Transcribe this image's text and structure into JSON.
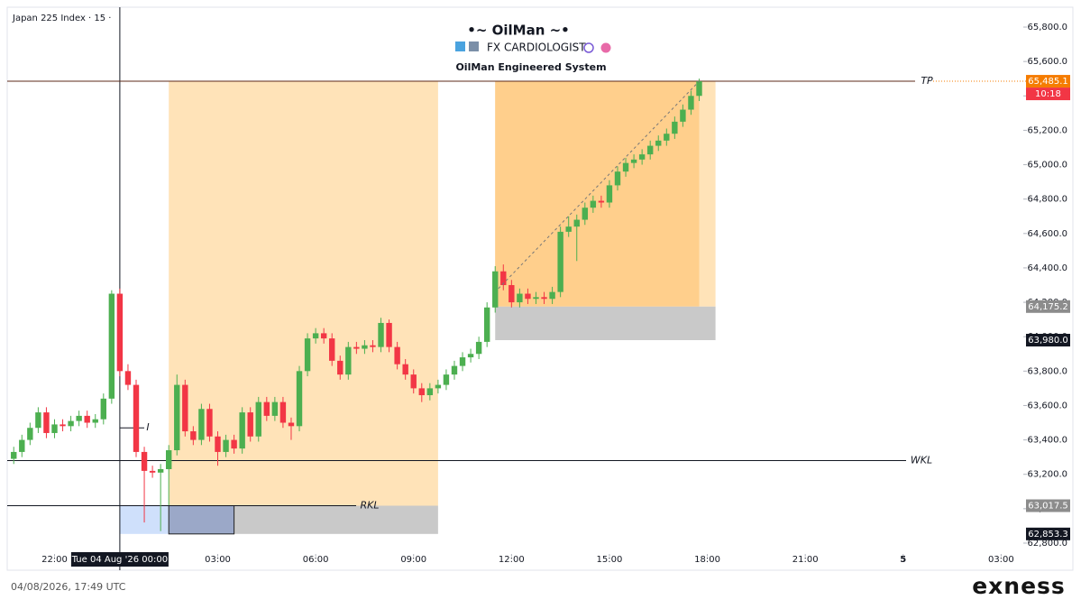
{
  "chart_data": {
    "type": "candlestick",
    "symbol": "Japan 225 Index · 15 ·",
    "title": "•~ OilMan ~•",
    "subtitle": "FX CARDIOLOGIST",
    "caption": "OilMan Engineered System",
    "timestamp": "04/08/2026, 17:49 UTC",
    "brand": "exness",
    "xlim": [
      -3.45,
      27.68
    ],
    "ylim": [
      62653,
      65905
    ],
    "xticks": [
      {
        "value": -2,
        "label": "22:00"
      },
      {
        "value": 3,
        "label": "03:00"
      },
      {
        "value": 6,
        "label": "06:00"
      },
      {
        "value": 9,
        "label": "09:00"
      },
      {
        "value": 12,
        "label": "12:00"
      },
      {
        "value": 15,
        "label": "15:00"
      },
      {
        "value": 18,
        "label": "18:00"
      },
      {
        "value": 21,
        "label": "21:00"
      },
      {
        "value": 24,
        "label": "5"
      },
      {
        "value": 27,
        "label": "03:00"
      }
    ],
    "yticks": [
      {
        "value": 62800,
        "label": "62,800.0"
      },
      {
        "value": 63000,
        "label": "63,000.0"
      },
      {
        "value": 63200,
        "label": "63,200.0"
      },
      {
        "value": 63400,
        "label": "63,400.0"
      },
      {
        "value": 63600,
        "label": "63,600.0"
      },
      {
        "value": 63800,
        "label": "63,800.0"
      },
      {
        "value": 64000,
        "label": "64,000.0"
      },
      {
        "value": 64200,
        "label": "64,200.0"
      },
      {
        "value": 64400,
        "label": "64,400.0"
      },
      {
        "value": 64600,
        "label": "64,600.0"
      },
      {
        "value": 64800,
        "label": "64,800.0"
      },
      {
        "value": 65000,
        "label": "65,000.0"
      },
      {
        "value": 65200,
        "label": "65,200.0"
      },
      {
        "value": 65400,
        "label": "65,400.0"
      },
      {
        "value": 65600,
        "label": "65,600.0"
      },
      {
        "value": 65800,
        "label": "65,800.0"
      }
    ],
    "crosshair": {
      "x": 0,
      "label": "Tue 04 Aug '26   00:00"
    },
    "up_color": "#4caf50",
    "down_color": "#f23645",
    "x": [
      -3.25,
      -3,
      -2.75,
      -2.5,
      -2.25,
      -2,
      -1.75,
      -1.5,
      -1.25,
      -1,
      -0.75,
      -0.5,
      -0.25,
      0,
      0.25,
      0.5,
      0.75,
      1,
      1.25,
      1.5,
      1.75,
      2,
      2.25,
      2.5,
      2.75,
      3,
      3.25,
      3.5,
      3.75,
      4,
      4.25,
      4.5,
      4.75,
      5,
      5.25,
      5.5,
      5.75,
      6,
      6.25,
      6.5,
      6.75,
      7,
      7.25,
      7.5,
      7.75,
      8,
      8.25,
      8.5,
      8.75,
      9,
      9.25,
      9.5,
      9.75,
      10,
      10.25,
      10.5,
      10.75,
      11,
      11.25,
      11.5,
      11.75,
      12,
      12.25,
      12.5,
      12.75,
      13,
      13.25,
      13.5,
      13.75,
      14,
      14.25,
      14.5,
      14.75,
      15,
      15.25,
      15.5,
      15.75,
      16,
      16.25,
      16.5,
      16.75,
      17,
      17.25,
      17.5,
      17.75
    ],
    "open": [
      63290,
      63330,
      63400,
      63470,
      63560,
      63440,
      63490,
      63480,
      63510,
      63540,
      63500,
      63520,
      63640,
      64250,
      63800,
      63720,
      63330,
      63220,
      63210,
      63230,
      63340,
      63720,
      63450,
      63400,
      63580,
      63420,
      63330,
      63400,
      63350,
      63560,
      63420,
      63620,
      63540,
      63620,
      63500,
      63480,
      63800,
      63990,
      64020,
      63990,
      63860,
      63780,
      63940,
      63930,
      63950,
      63940,
      64080,
      63940,
      63840,
      63780,
      63700,
      63660,
      63700,
      63720,
      63780,
      63830,
      63880,
      63900,
      63970,
      64170,
      64380,
      64300,
      64200,
      64250,
      64220,
      64230,
      64220,
      64260,
      64610,
      64640,
      64680,
      64750,
      64790,
      64780,
      64880,
      64960,
      65010,
      65030,
      65060,
      65110,
      65140,
      65180,
      65250,
      65320,
      65400
    ],
    "high": [
      63360,
      63430,
      63500,
      63590,
      63590,
      63520,
      63520,
      63540,
      63570,
      63570,
      63550,
      63670,
      64270,
      64280,
      63840,
      63750,
      63360,
      63250,
      63260,
      63370,
      63780,
      63750,
      63480,
      63610,
      63610,
      63450,
      63430,
      63430,
      63590,
      63590,
      63650,
      63650,
      63650,
      63650,
      63530,
      63830,
      64020,
      64050,
      64050,
      64020,
      63890,
      63970,
      63970,
      63980,
      63980,
      64110,
      64100,
      63970,
      63870,
      63810,
      63730,
      63730,
      63750,
      63810,
      63860,
      63910,
      63930,
      64000,
      64200,
      64410,
      64420,
      64330,
      64280,
      64280,
      64260,
      64260,
      64290,
      64640,
      64700,
      64710,
      64780,
      64820,
      64820,
      64910,
      64990,
      65040,
      65060,
      65090,
      65140,
      65170,
      65210,
      65280,
      65350,
      65430,
      65500
    ],
    "low": [
      63260,
      63300,
      63370,
      63440,
      63410,
      63410,
      63450,
      63450,
      63480,
      63470,
      63470,
      63490,
      63610,
      63770,
      63690,
      63300,
      62920,
      63180,
      62870,
      63020,
      63310,
      63420,
      63370,
      63370,
      63390,
      63250,
      63300,
      63320,
      63320,
      63390,
      63390,
      63510,
      63510,
      63470,
      63400,
      63450,
      63770,
      63960,
      63960,
      63830,
      63750,
      63750,
      63900,
      63900,
      63910,
      63910,
      63910,
      63810,
      63750,
      63670,
      63620,
      63630,
      63670,
      63690,
      63750,
      63800,
      63850,
      63870,
      63940,
      64140,
      64270,
      64170,
      64170,
      64190,
      64190,
      64190,
      64190,
      64230,
      64580,
      64440,
      64650,
      64720,
      64750,
      64750,
      64850,
      64930,
      64980,
      65000,
      65030,
      65080,
      65110,
      65150,
      65220,
      65290,
      65370
    ],
    "close": [
      63330,
      63400,
      63470,
      63560,
      63440,
      63490,
      63480,
      63510,
      63540,
      63500,
      63520,
      63640,
      64250,
      63800,
      63720,
      63330,
      63220,
      63210,
      63230,
      63340,
      63720,
      63450,
      63400,
      63580,
      63420,
      63330,
      63400,
      63350,
      63560,
      63420,
      63620,
      63540,
      63620,
      63500,
      63480,
      63800,
      63990,
      64020,
      63990,
      63860,
      63780,
      63940,
      63930,
      63950,
      63940,
      64080,
      63940,
      63840,
      63780,
      63700,
      63660,
      63700,
      63720,
      63780,
      63830,
      63880,
      63900,
      63970,
      64170,
      64380,
      64300,
      64200,
      64250,
      64220,
      64230,
      64220,
      64260,
      64610,
      64640,
      64680,
      64750,
      64790,
      64780,
      64880,
      64960,
      65010,
      65030,
      65060,
      65110,
      65140,
      65180,
      65250,
      65320,
      65400,
      65485
    ],
    "zones": [
      {
        "from": 1.5,
        "to": 9.75,
        "top": 65485.1,
        "bottom": 63017.5,
        "color": "#ffe3b8"
      },
      {
        "from": 11.5,
        "to": 18.25,
        "top": 65485.1,
        "bottom": 64175.2,
        "color": "#ffe3b8"
      },
      {
        "from": 11.5,
        "to": 17.75,
        "top": 65485.1,
        "bottom": 64175.2,
        "color": "#ffcf8c"
      },
      {
        "from": 11.5,
        "to": 18.25,
        "top": 64175.2,
        "bottom": 63980.0,
        "color": "#c9c9c9"
      },
      {
        "from": 3.5,
        "to": 9.75,
        "top": 63017.5,
        "bottom": 62853.3,
        "color": "#c9c9c9"
      },
      {
        "from": 0,
        "to": 1.5,
        "top": 63017.5,
        "bottom": 62853.3,
        "color": "#cfe0fb"
      },
      {
        "from": 1.5,
        "to": 3.5,
        "top": 63017.5,
        "bottom": 62853.3,
        "color": "#9ba8c8"
      }
    ],
    "levels": [
      {
        "label": "TP",
        "value": 65485.1
      },
      {
        "label": "WKL",
        "value": 63280
      },
      {
        "label": "RKL",
        "value": 63017.5
      },
      {
        "label": "I",
        "value": 63470
      }
    ],
    "projection": {
      "x": [
        11.6,
        17.75
      ],
      "values": [
        64280,
        65485.1
      ]
    },
    "price_labels": [
      {
        "value": 65485.1,
        "label": "65,485.1",
        "color": "#f57c00"
      },
      {
        "value": 64175.2,
        "label": "64,175.2",
        "color": "#8c8c8c"
      },
      {
        "value": 63980.0,
        "label": "63,980.0",
        "color": "#131722"
      },
      {
        "value": 63017.5,
        "label": "63,017.5",
        "color": "#8c8c8c"
      },
      {
        "value": 62853.3,
        "label": "62,853.3",
        "color": "#131722"
      }
    ],
    "countdown": "10:18"
  }
}
